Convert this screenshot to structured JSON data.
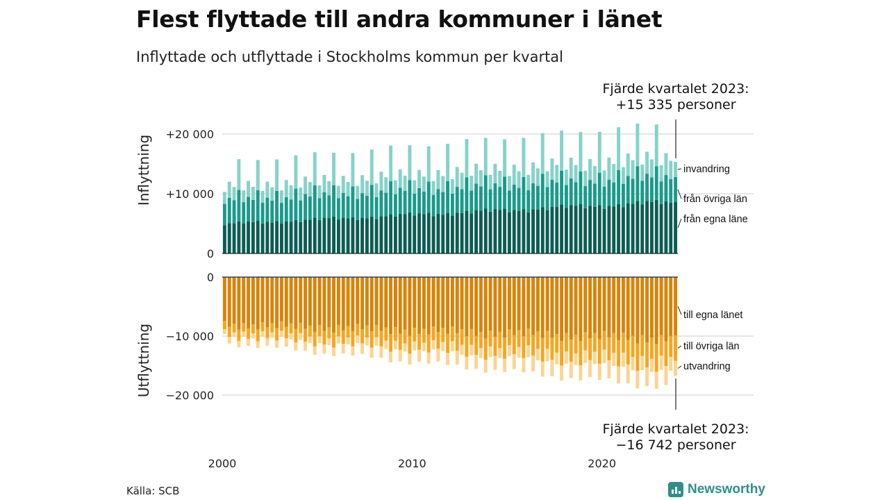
{
  "header": {
    "title": "Flest flyttade till andra kommuner i länet",
    "subtitle": "Inflyttade och utflyttade i Stockholms kommun per kvartal"
  },
  "footer": {
    "source": "Källa: SCB",
    "brand": "Newsworthy",
    "brand_icon": "bar-chart-logo-icon"
  },
  "chart_data": [
    {
      "type": "bar",
      "stacked": true,
      "panel": "top",
      "ylabel": "Inflyttning",
      "ylim": [
        0,
        23000
      ],
      "yticks": [
        {
          "value": 0,
          "label": "0"
        },
        {
          "value": 10000,
          "label": "+10 000"
        },
        {
          "value": 20000,
          "label": "+20 000"
        }
      ],
      "annotation": {
        "line1": "Fjärde kvartalet 2023:",
        "line2": "+15 335 personer"
      },
      "series": [
        {
          "name": "från egna länet",
          "label": "från egna läne",
          "color": "#0d5c54",
          "start": 4900,
          "end": 8600,
          "pattern": [
            0.96,
            1.02,
            1.0,
            1.04
          ]
        },
        {
          "name": "från övriga län",
          "label": "från övriga län",
          "color": "#1a9a8b",
          "start": 3900,
          "end": 4300,
          "pattern": [
            0.9,
            1.05,
            0.95,
            1.32
          ]
        },
        {
          "name": "invandring",
          "label": "invandring",
          "color": "#85d3c9",
          "start": 2300,
          "end": 3300,
          "pattern": [
            0.85,
            1.15,
            0.95,
            2.2
          ]
        }
      ],
      "last_quarter": {
        "från egna länet": 8600,
        "från övriga län": 4200,
        "invandring": 2535
      }
    },
    {
      "type": "bar",
      "stacked": true,
      "panel": "bottom",
      "ylabel": "Utflyttning",
      "ylim": [
        -23000,
        0
      ],
      "yticks": [
        {
          "value": 0,
          "label": "0"
        },
        {
          "value": -10000,
          "label": "−10 000"
        },
        {
          "value": -20000,
          "label": "−20 000"
        }
      ],
      "annotation": {
        "line1": "Fjärde kvartalet 2023:",
        "line2": "−16 742 personer"
      },
      "series": [
        {
          "name": "till egna länet",
          "label": "till egna länet",
          "color": "#d98307",
          "start": 8000,
          "end": 10500,
          "pattern": [
            0.93,
            1.04,
            0.96,
            1.07
          ]
        },
        {
          "name": "till övriga län",
          "label": "till övriga län",
          "color": "#f7a51f",
          "start": 1500,
          "end": 4000,
          "pattern": [
            0.9,
            1.08,
            0.92,
            1.2
          ]
        },
        {
          "name": "utvandring",
          "label": "utvandring",
          "color": "#f9d594",
          "start": 900,
          "end": 2800,
          "pattern": [
            0.9,
            1.2,
            0.85,
            1.1
          ]
        }
      ],
      "last_quarter": {
        "till egna länet": 9900,
        "till övriga län": 4300,
        "utvandring": 2542
      }
    }
  ],
  "x_axis": {
    "start_year": 2000,
    "end_year": 2023,
    "quarters_per_year": 4,
    "tick_labels": [
      {
        "year": 2000,
        "label": "2000"
      },
      {
        "year": 2010,
        "label": "2010"
      },
      {
        "year": 2020,
        "label": "2020"
      }
    ]
  }
}
